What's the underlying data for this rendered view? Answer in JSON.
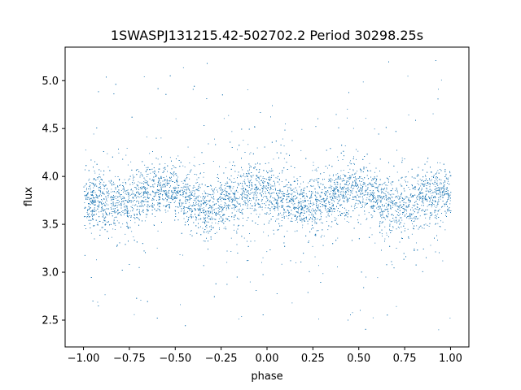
{
  "chart_data": {
    "type": "scatter",
    "title": "1SWASPJ131215.42-502702.2 Period 30298.25s",
    "xlabel": "phase",
    "ylabel": "flux",
    "xlim": [
      -1.1,
      1.1
    ],
    "ylim": [
      2.22,
      5.35
    ],
    "xticks": [
      -1.0,
      -0.75,
      -0.5,
      -0.25,
      0.0,
      0.25,
      0.5,
      0.75,
      1.0
    ],
    "xtick_labels": [
      "−1.00",
      "−0.75",
      "−0.50",
      "−0.25",
      "0.00",
      "0.25",
      "0.50",
      "0.75",
      "1.00"
    ],
    "yticks": [
      2.5,
      3.0,
      3.5,
      4.0,
      4.5,
      5.0
    ],
    "ytick_labels": [
      "2.5",
      "3.0",
      "3.5",
      "4.0",
      "4.5",
      "5.0"
    ],
    "grid": false,
    "point_color": "#1f77b4",
    "series": [
      {
        "x": [
          -1.0,
          -0.9,
          -0.8,
          -0.7,
          -0.6,
          -0.5,
          -0.4,
          -0.3,
          -0.2,
          -0.1,
          0.0,
          0.1,
          0.2,
          0.3,
          0.4,
          0.5,
          0.6,
          0.7,
          0.8,
          0.9,
          1.0
        ],
        "y": [
          3.78,
          3.75,
          3.7,
          3.82,
          3.88,
          3.84,
          3.74,
          3.66,
          3.76,
          3.86,
          3.82,
          3.74,
          3.68,
          3.75,
          3.86,
          3.88,
          3.76,
          3.66,
          3.74,
          3.82,
          3.82
        ]
      }
    ]
  }
}
